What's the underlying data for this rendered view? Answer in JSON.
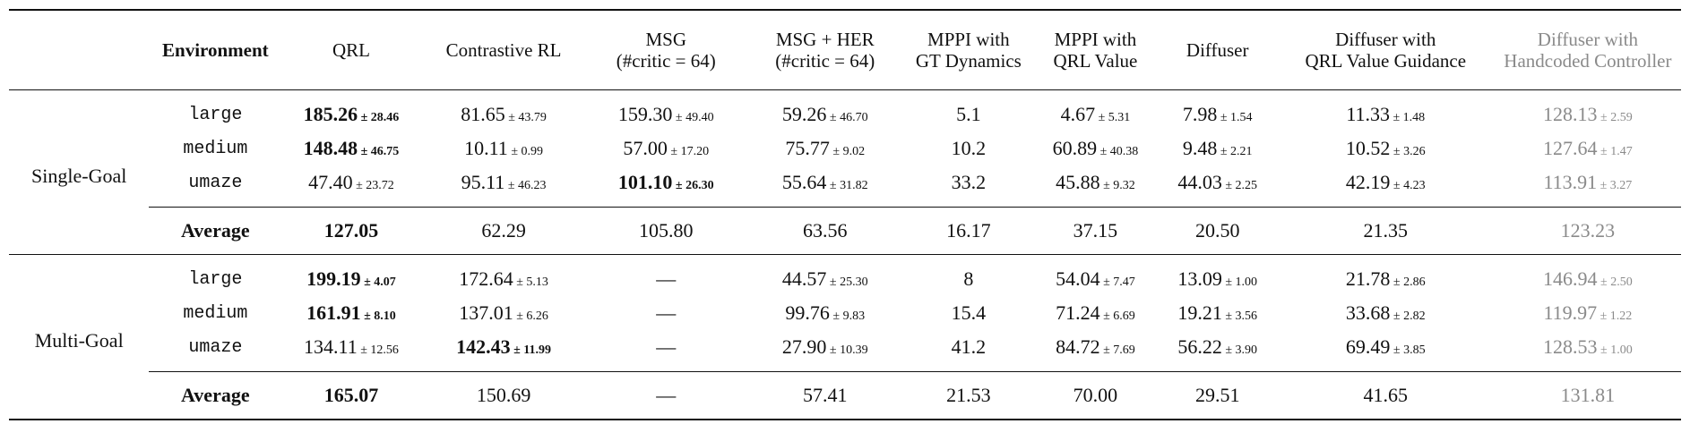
{
  "table": {
    "headers": [
      "",
      "Environment",
      "QRL",
      "Contrastive RL",
      "MSG\n(#critic = 64)",
      "MSG + HER\n(#critic = 64)",
      "MPPI with\nGT Dynamics",
      "MPPI with\nQRL Value",
      "Diffuser",
      "Diffuser with\nQRL Value Guidance",
      "Diffuser with\nHandcoded Controller"
    ],
    "groups": [
      {
        "label": "Single-Goal",
        "rows": [
          {
            "env": "large",
            "cells": [
              {
                "v": "185.26",
                "pm": "± 28.46",
                "bold": true
              },
              {
                "v": "81.65",
                "pm": "± 43.79"
              },
              {
                "v": "159.30",
                "pm": "± 49.40"
              },
              {
                "v": "59.26",
                "pm": "± 46.70"
              },
              {
                "v": "5.1",
                "pm": ""
              },
              {
                "v": "4.67",
                "pm": "± 5.31"
              },
              {
                "v": "7.98",
                "pm": "± 1.54"
              },
              {
                "v": "11.33",
                "pm": "± 1.48"
              },
              {
                "v": "128.13",
                "pm": "± 2.59"
              }
            ]
          },
          {
            "env": "medium",
            "cells": [
              {
                "v": "148.48",
                "pm": "± 46.75",
                "bold": true
              },
              {
                "v": "10.11",
                "pm": "± 0.99"
              },
              {
                "v": "57.00",
                "pm": "± 17.20"
              },
              {
                "v": "75.77",
                "pm": "± 9.02"
              },
              {
                "v": "10.2",
                "pm": ""
              },
              {
                "v": "60.89",
                "pm": "± 40.38"
              },
              {
                "v": "9.48",
                "pm": "± 2.21"
              },
              {
                "v": "10.52",
                "pm": "± 3.26"
              },
              {
                "v": "127.64",
                "pm": "± 1.47"
              }
            ]
          },
          {
            "env": "umaze",
            "cells": [
              {
                "v": "47.40",
                "pm": "± 23.72"
              },
              {
                "v": "95.11",
                "pm": "± 46.23"
              },
              {
                "v": "101.10",
                "pm": "± 26.30",
                "bold": true
              },
              {
                "v": "55.64",
                "pm": "± 31.82"
              },
              {
                "v": "33.2",
                "pm": ""
              },
              {
                "v": "45.88",
                "pm": "± 9.32"
              },
              {
                "v": "44.03",
                "pm": "± 2.25"
              },
              {
                "v": "42.19",
                "pm": "± 4.23"
              },
              {
                "v": "113.91",
                "pm": "± 3.27"
              }
            ]
          }
        ],
        "average": {
          "label": "Average",
          "values": [
            "127.05",
            "62.29",
            "105.80",
            "63.56",
            "16.17",
            "37.15",
            "20.50",
            "21.35",
            "123.23"
          ]
        }
      },
      {
        "label": "Multi-Goal",
        "rows": [
          {
            "env": "large",
            "cells": [
              {
                "v": "199.19",
                "pm": "± 4.07",
                "bold": true
              },
              {
                "v": "172.64",
                "pm": "± 5.13"
              },
              {
                "v": "—",
                "pm": ""
              },
              {
                "v": "44.57",
                "pm": "± 25.30"
              },
              {
                "v": "8",
                "pm": ""
              },
              {
                "v": "54.04",
                "pm": "± 7.47"
              },
              {
                "v": "13.09",
                "pm": "± 1.00"
              },
              {
                "v": "21.78",
                "pm": "± 2.86"
              },
              {
                "v": "146.94",
                "pm": "± 2.50"
              }
            ]
          },
          {
            "env": "medium",
            "cells": [
              {
                "v": "161.91",
                "pm": "± 8.10",
                "bold": true
              },
              {
                "v": "137.01",
                "pm": "± 6.26"
              },
              {
                "v": "—",
                "pm": ""
              },
              {
                "v": "99.76",
                "pm": "± 9.83"
              },
              {
                "v": "15.4",
                "pm": ""
              },
              {
                "v": "71.24",
                "pm": "± 6.69"
              },
              {
                "v": "19.21",
                "pm": "± 3.56"
              },
              {
                "v": "33.68",
                "pm": "± 2.82"
              },
              {
                "v": "119.97",
                "pm": "± 1.22"
              }
            ]
          },
          {
            "env": "umaze",
            "cells": [
              {
                "v": "134.11",
                "pm": "± 12.56"
              },
              {
                "v": "142.43",
                "pm": "± 11.99",
                "bold": true
              },
              {
                "v": "—",
                "pm": ""
              },
              {
                "v": "27.90",
                "pm": "± 10.39"
              },
              {
                "v": "41.2",
                "pm": ""
              },
              {
                "v": "84.72",
                "pm": "± 7.69"
              },
              {
                "v": "56.22",
                "pm": "± 3.90"
              },
              {
                "v": "69.49",
                "pm": "± 3.85"
              },
              {
                "v": "128.53",
                "pm": "± 1.00"
              }
            ]
          }
        ],
        "average": {
          "label": "Average",
          "values": [
            "165.07",
            "150.69",
            "—",
            "57.41",
            "21.53",
            "70.00",
            "29.51",
            "41.65",
            "131.81"
          ]
        }
      }
    ],
    "bold_average_column": 0,
    "gray_column": 8,
    "gray_color": "#8a8a8a"
  }
}
